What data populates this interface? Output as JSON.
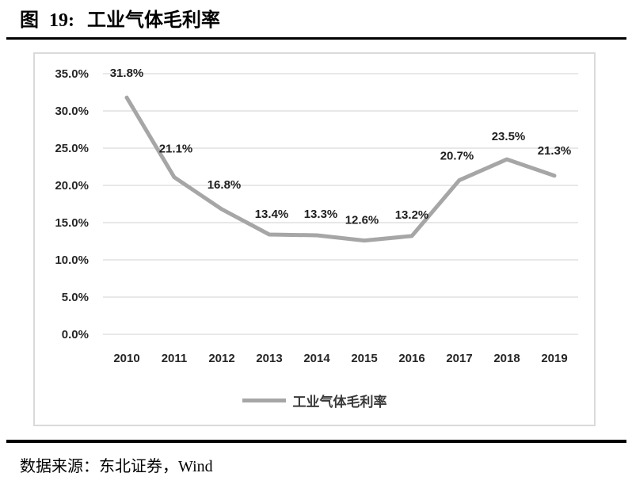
{
  "header": {
    "figure_label": "图",
    "figure_number": "19:",
    "title": "工业气体毛利率"
  },
  "figure": {
    "source": "数据来源：东北证券，Wind"
  },
  "chart_data": {
    "type": "line",
    "title": "工业气体毛利率",
    "categories": [
      "2010",
      "2011",
      "2012",
      "2013",
      "2014",
      "2015",
      "2016",
      "2017",
      "2018",
      "2019"
    ],
    "series": [
      {
        "name": "工业气体毛利率",
        "values": [
          31.8,
          21.1,
          16.8,
          13.4,
          13.3,
          12.6,
          13.2,
          20.7,
          23.5,
          21.3
        ]
      }
    ],
    "data_labels": [
      "31.8%",
      "21.1%",
      "16.8%",
      "13.4%",
      "13.3%",
      "12.6%",
      "13.2%",
      "20.7%",
      "23.5%",
      "21.3%"
    ],
    "y_ticks": [
      "35.0%",
      "30.0%",
      "25.0%",
      "20.0%",
      "15.0%",
      "10.0%",
      "5.0%",
      "0.0%"
    ],
    "ylim": [
      0,
      35
    ],
    "grid": true,
    "legend": {
      "label": "工业气体毛利率",
      "position": "bottom"
    },
    "line_color": "#a6a6a6",
    "gridline_color": "#d9d9d9"
  }
}
